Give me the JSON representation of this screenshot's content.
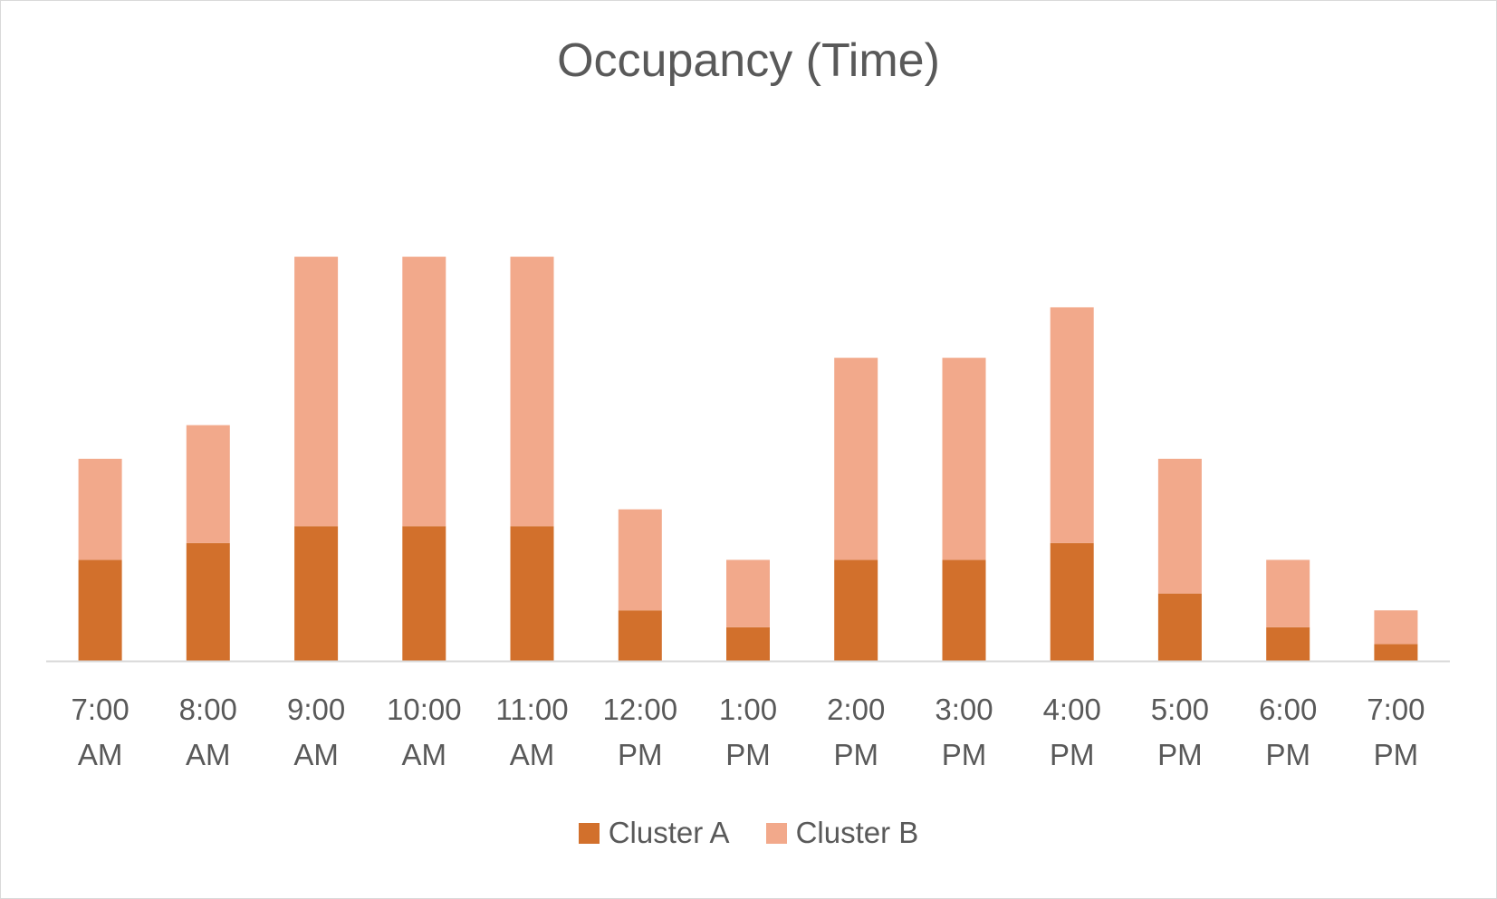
{
  "chart_data": {
    "type": "bar",
    "stacked": true,
    "title": "Occupancy (Time)",
    "xlabel": "",
    "ylabel": "",
    "ylim": [
      0,
      14
    ],
    "grid": false,
    "legend_position": "bottom",
    "categories": [
      [
        "7:00",
        "AM"
      ],
      [
        "8:00",
        "AM"
      ],
      [
        "9:00",
        "AM"
      ],
      [
        "10:00",
        "AM"
      ],
      [
        "11:00",
        "AM"
      ],
      [
        "12:00",
        "PM"
      ],
      [
        "1:00",
        "PM"
      ],
      [
        "2:00",
        "PM"
      ],
      [
        "3:00",
        "PM"
      ],
      [
        "4:00",
        "PM"
      ],
      [
        "5:00",
        "PM"
      ],
      [
        "6:00",
        "PM"
      ],
      [
        "7:00",
        "PM"
      ]
    ],
    "series": [
      {
        "name": "Cluster A",
        "color": "#D2702C",
        "values": [
          3,
          3.5,
          4,
          4,
          4,
          1.5,
          1,
          3,
          3,
          3.5,
          2,
          1,
          0.5
        ]
      },
      {
        "name": "Cluster B",
        "color": "#F2A98B",
        "values": [
          3,
          3.5,
          8,
          8,
          8,
          3,
          2,
          6,
          6,
          7,
          4,
          2,
          1
        ]
      }
    ]
  }
}
